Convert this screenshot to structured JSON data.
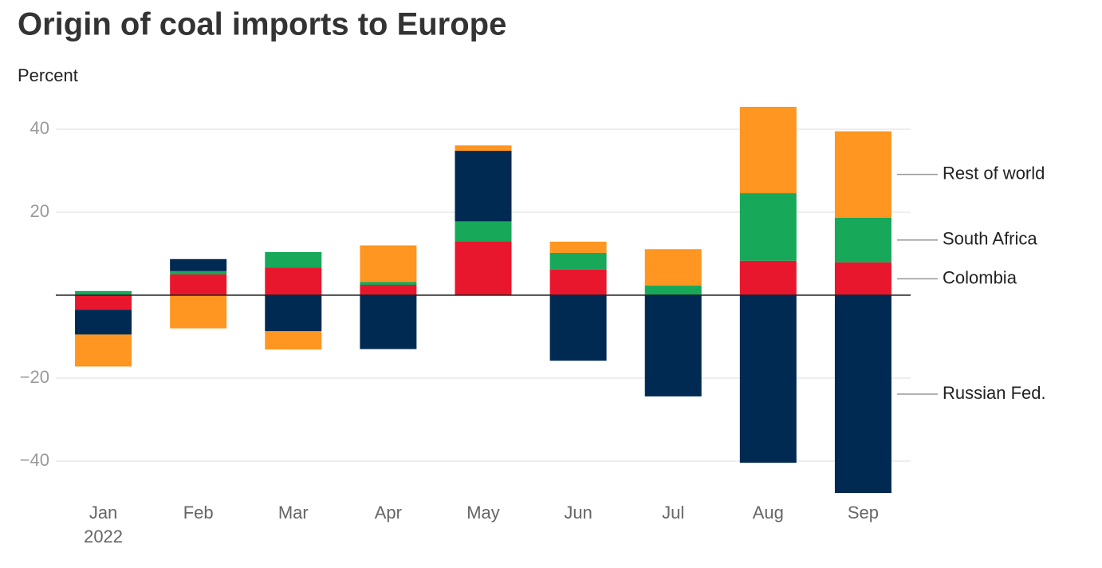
{
  "chart_data": {
    "type": "bar",
    "stacked": true,
    "title": "Origin of coal imports to Europe",
    "y_label": "Percent",
    "year": "2022",
    "categories": [
      "Jan",
      "Feb",
      "Mar",
      "Apr",
      "May",
      "Jun",
      "Jul",
      "Aug",
      "Sep"
    ],
    "series": [
      {
        "name": "Colombia",
        "color": "#e8172e",
        "values": [
          -3.5,
          5,
          6.7,
          2.5,
          13,
          6.2,
          0,
          8.3,
          7.9
        ]
      },
      {
        "name": "South Africa",
        "color": "#17a85a",
        "values": [
          1,
          0.8,
          3.7,
          0.7,
          4.8,
          4,
          2.3,
          16.3,
          10.8
        ]
      },
      {
        "name": "Russian Fed.",
        "color": "#002a52",
        "values": [
          -6,
          2.9,
          -8.7,
          -13,
          17,
          -15.8,
          -24.4,
          -40.4,
          -47.7
        ]
      },
      {
        "name": "Rest of world",
        "color": "#fe9621",
        "values": [
          -7.7,
          -8,
          -4.4,
          8.8,
          1.3,
          2.7,
          8.8,
          20.8,
          20.8
        ]
      }
    ],
    "ylim": [
      -50,
      50
    ],
    "yticks": [
      {
        "value": -40,
        "label": "−40"
      },
      {
        "value": -20,
        "label": "−20"
      },
      20,
      40
    ],
    "grid": true
  }
}
